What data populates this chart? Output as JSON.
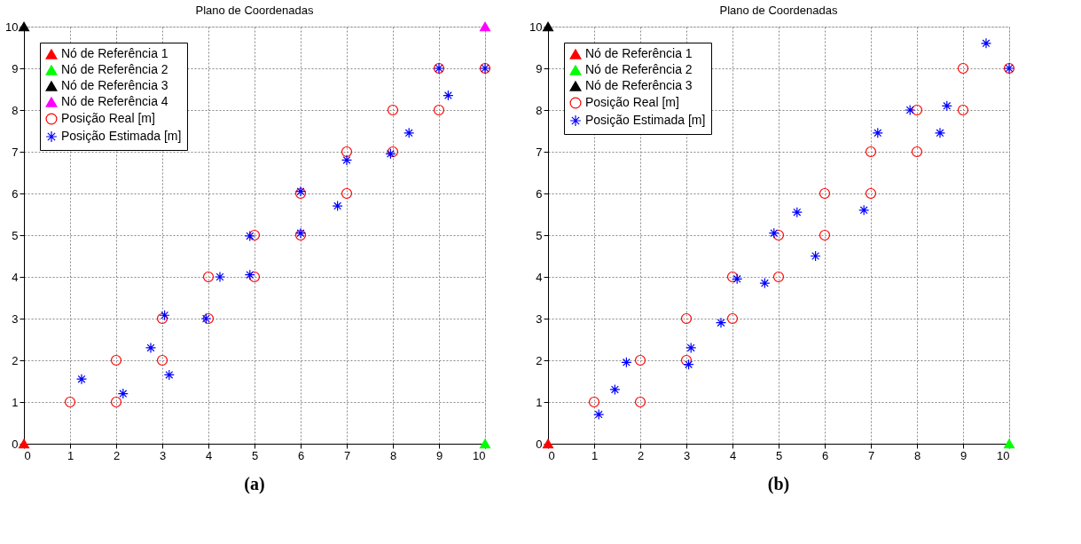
{
  "chart_data": [
    {
      "type": "scatter",
      "title": "Plano de Coordenadas",
      "xlim": [
        0,
        10
      ],
      "ylim": [
        0,
        10
      ],
      "xticks": [
        0,
        1,
        2,
        3,
        4,
        5,
        6,
        7,
        8,
        9,
        10
      ],
      "yticks": [
        0,
        1,
        2,
        3,
        4,
        5,
        6,
        7,
        8,
        9,
        10
      ],
      "grid": true,
      "legend": "top left",
      "annotations": [
        "(a)"
      ],
      "series": [
        {
          "name": "Nó de Referência 1",
          "color": "#ff0000",
          "marker": "triangle",
          "x": [
            0
          ],
          "values": [
            0
          ]
        },
        {
          "name": "Nó de Referência 2",
          "color": "#00ff00",
          "marker": "triangle",
          "x": [
            10
          ],
          "values": [
            0
          ]
        },
        {
          "name": "Nó de Referência 3",
          "color": "#000000",
          "marker": "triangle",
          "x": [
            0
          ],
          "values": [
            10
          ]
        },
        {
          "name": "Nó de Referência 4",
          "color": "#ff00ff",
          "marker": "triangle",
          "x": [
            10
          ],
          "values": [
            10
          ]
        },
        {
          "name": "Posição Real [m]",
          "color": "#ff0000",
          "marker": "circle",
          "x": [
            1,
            2,
            2,
            3,
            3,
            4,
            4,
            5,
            5,
            6,
            6,
            7,
            7,
            8,
            8,
            9,
            9,
            10
          ],
          "values": [
            1,
            1,
            2,
            2,
            3,
            3,
            4,
            4,
            5,
            5,
            6,
            6,
            7,
            7,
            8,
            8,
            9,
            9
          ]
        },
        {
          "name": "Posição Estimada [m]",
          "color": "#0000ff",
          "marker": "cross",
          "x": [
            1.25,
            2.15,
            2.75,
            3.05,
            3.15,
            3.95,
            4.25,
            4.9,
            4.9,
            6.0,
            6.0,
            6.8,
            7.0,
            7.95,
            8.35,
            9.0,
            9.2,
            10.0
          ],
          "values": [
            1.55,
            1.2,
            2.3,
            3.08,
            1.65,
            3.0,
            4.0,
            4.05,
            4.98,
            5.05,
            6.05,
            5.7,
            6.8,
            6.95,
            7.45,
            9.0,
            8.35,
            9.0
          ]
        }
      ]
    },
    {
      "type": "scatter",
      "title": "Plano de Coordenadas",
      "xlim": [
        0,
        10
      ],
      "ylim": [
        0,
        10
      ],
      "xticks": [
        0,
        1,
        2,
        3,
        4,
        5,
        6,
        7,
        8,
        9,
        10
      ],
      "yticks": [
        0,
        1,
        2,
        3,
        4,
        5,
        6,
        7,
        8,
        9,
        10
      ],
      "grid": true,
      "legend": "top left",
      "annotations": [
        "(b)"
      ],
      "series": [
        {
          "name": "Nó de Referência 1",
          "color": "#ff0000",
          "marker": "triangle",
          "x": [
            0
          ],
          "values": [
            0
          ]
        },
        {
          "name": "Nó de Referência 2",
          "color": "#00ff00",
          "marker": "triangle",
          "x": [
            10
          ],
          "values": [
            0
          ]
        },
        {
          "name": "Nó de Referência 3",
          "color": "#000000",
          "marker": "triangle",
          "x": [
            0
          ],
          "values": [
            10
          ]
        },
        {
          "name": "Posição Real [m]",
          "color": "#ff0000",
          "marker": "circle",
          "x": [
            1,
            2,
            2,
            3,
            3,
            4,
            4,
            5,
            5,
            6,
            6,
            7,
            7,
            8,
            8,
            9,
            9,
            10
          ],
          "values": [
            1,
            1,
            2,
            2,
            3,
            3,
            4,
            4,
            5,
            5,
            6,
            6,
            7,
            7,
            8,
            8,
            9,
            9
          ]
        },
        {
          "name": "Posição Estimada [m]",
          "color": "#0000ff",
          "marker": "cross",
          "x": [
            1.1,
            1.45,
            1.7,
            3.05,
            3.1,
            3.75,
            4.1,
            4.7,
            4.9,
            5.4,
            5.8,
            6.85,
            7.15,
            7.85,
            8.5,
            8.65,
            9.5,
            10.0
          ],
          "values": [
            0.7,
            1.3,
            1.95,
            1.9,
            2.3,
            2.9,
            3.95,
            3.85,
            5.05,
            5.55,
            4.5,
            5.6,
            7.45,
            8.0,
            7.45,
            8.1,
            9.6,
            9.0
          ]
        }
      ]
    }
  ]
}
